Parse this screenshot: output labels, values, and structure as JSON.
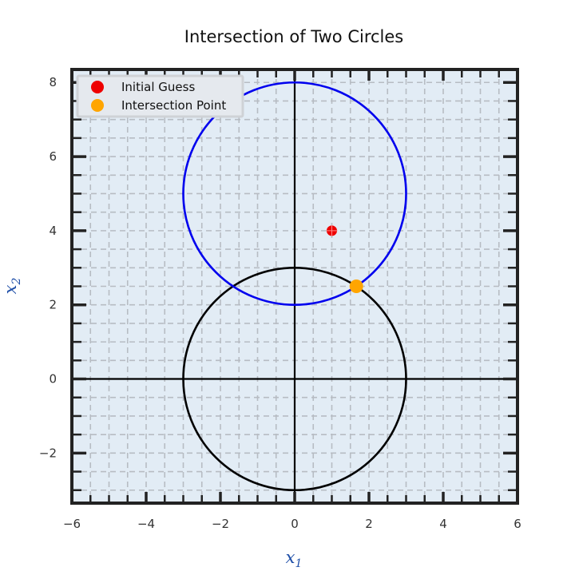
{
  "chart_data": {
    "type": "scatter",
    "title": "Intersection of Two Circles",
    "xlabel": {
      "base": "x",
      "sub": "1"
    },
    "ylabel": {
      "base": "x",
      "sub": "2"
    },
    "xlim": [
      -6,
      6
    ],
    "ylim": [
      -3.35,
      8.35
    ],
    "xticks": [
      -6,
      -4,
      -2,
      0,
      2,
      4,
      6
    ],
    "xtick_labels": [
      "−6",
      "−4",
      "−2",
      "0",
      "2",
      "4",
      "6"
    ],
    "yticks": [
      -2,
      0,
      2,
      4,
      6,
      8
    ],
    "ytick_labels": [
      "−2",
      "0",
      "2",
      "4",
      "6",
      "8"
    ],
    "minor_step": 0.5,
    "grid": true,
    "background": "#e2ecf5",
    "circles": [
      {
        "cx": 0,
        "cy": 0,
        "r": 3,
        "color": "#000000"
      },
      {
        "cx": 0,
        "cy": 5,
        "r": 3,
        "color": "#0000ee"
      }
    ],
    "axhline": 0,
    "axvline": 0,
    "series": [
      {
        "name": "Initial Guess",
        "color": "#ee0000",
        "x": [
          1
        ],
        "y": [
          4
        ]
      },
      {
        "name": "Intersection Point",
        "color": "#ffa500",
        "x": [
          1.66
        ],
        "y": [
          2.5
        ]
      }
    ],
    "legend_loc": "upper left"
  }
}
